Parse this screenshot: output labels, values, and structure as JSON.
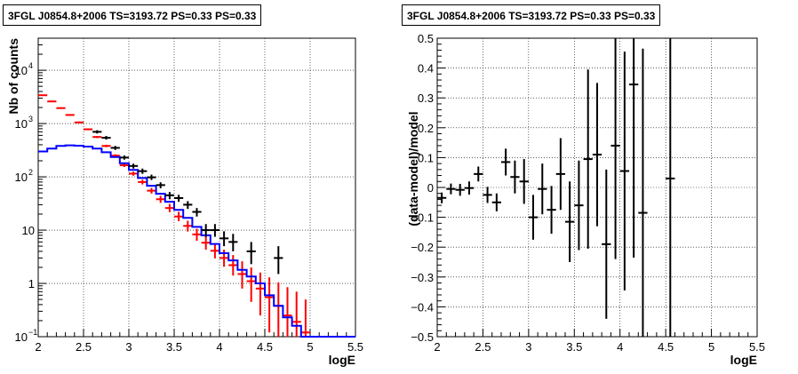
{
  "chart_data": [
    {
      "type": "histogram",
      "title": "3FGL J0854.8+2006 TS=3193.72 PS=0.33 PS=0.33",
      "xlabel": "logE",
      "ylabel": "Nb of counts",
      "xlim": [
        2,
        5.5
      ],
      "ylim": [
        0.1,
        40000
      ],
      "yscale": "log",
      "grid": true,
      "x_ticks": [
        "2",
        "2.5",
        "3",
        "3.5",
        "4",
        "4.5",
        "5",
        "5.5"
      ],
      "y_ticks": [
        "10^-1",
        "1",
        "10",
        "10^2",
        "10^3",
        "10^4"
      ],
      "bin_edges": [
        2.0,
        2.1,
        2.2,
        2.3,
        2.4,
        2.5,
        2.6,
        2.7,
        2.8,
        2.9,
        3.0,
        3.1,
        3.2,
        3.3,
        3.4,
        3.5,
        3.6,
        3.7,
        3.8,
        3.9,
        4.0,
        4.1,
        4.2,
        4.3,
        4.4,
        4.5,
        4.6,
        4.7,
        4.8,
        4.9,
        5.0,
        5.1,
        5.2,
        5.3,
        5.4,
        5.5
      ],
      "series": [
        {
          "color": "#ff0000",
          "style": "model-with-errors",
          "values": [
            3400,
            2600,
            1950,
            1450,
            1050,
            780,
            560,
            380,
            250,
            165,
            115,
            80,
            55,
            38,
            26,
            18,
            12,
            8.3,
            5.8,
            4.1,
            3.0,
            2.2,
            1.5,
            1.1,
            0.8,
            0.55,
            0.38,
            0.25,
            0.19,
            0.12
          ],
          "err_low": [
            3300,
            2520,
            1890,
            1400,
            1010,
            750,
            535,
            360,
            235,
            153,
            105,
            72,
            48.5,
            32.5,
            21.8,
            14.7,
            9.4,
            6.3,
            4.3,
            2.95,
            2.05,
            1.4,
            0.8,
            0.45,
            0.25,
            0.12,
            0.1,
            0.1,
            0.1,
            0.1
          ],
          "err_high": [
            3500,
            2680,
            2010,
            1500,
            1090,
            810,
            585,
            400,
            265,
            177,
            125,
            88,
            62,
            44,
            31,
            22,
            15,
            10.6,
            7.7,
            5.6,
            4.3,
            3.4,
            2.6,
            2.0,
            1.6,
            1.3,
            1.05,
            0.85,
            0.7,
            0.5
          ]
        },
        {
          "color": "#0000ff",
          "style": "step",
          "values": [
            300,
            340,
            380,
            390,
            385,
            370,
            340,
            290,
            235,
            180,
            135,
            95,
            68,
            48,
            34,
            24,
            17,
            11.5,
            8,
            5.5,
            3.7,
            2.7,
            1.8,
            1.35,
            1.0,
            0.6,
            0.38,
            0.23,
            0.16,
            0.1,
            0.1,
            0.1,
            0.1,
            0.1,
            0.1
          ]
        },
        {
          "color": "#000000",
          "style": "points-with-errors",
          "points": [
            {
              "x": 2.65,
              "y": 700,
              "low": 650,
              "high": 750
            },
            {
              "x": 2.75,
              "y": 540,
              "low": 500,
              "high": 585
            },
            {
              "x": 2.85,
              "y": 350,
              "low": 320,
              "high": 380
            },
            {
              "x": 2.95,
              "y": 230,
              "low": 210,
              "high": 252
            },
            {
              "x": 3.05,
              "y": 160,
              "low": 143,
              "high": 177
            },
            {
              "x": 3.15,
              "y": 128,
              "low": 114,
              "high": 143
            },
            {
              "x": 3.25,
              "y": 98,
              "low": 87,
              "high": 110
            },
            {
              "x": 3.35,
              "y": 70,
              "low": 61,
              "high": 79
            },
            {
              "x": 3.45,
              "y": 45,
              "low": 38,
              "high": 52
            },
            {
              "x": 3.55,
              "y": 40,
              "low": 34,
              "high": 46
            },
            {
              "x": 3.65,
              "y": 30,
              "low": 25,
              "high": 35
            },
            {
              "x": 3.75,
              "y": 22,
              "low": 18,
              "high": 26
            },
            {
              "x": 3.85,
              "y": 10,
              "low": 7.5,
              "high": 13
            },
            {
              "x": 3.95,
              "y": 10,
              "low": 7.5,
              "high": 13
            },
            {
              "x": 4.05,
              "y": 7,
              "low": 5,
              "high": 9.5
            },
            {
              "x": 4.15,
              "y": 6,
              "low": 4,
              "high": 8.5
            },
            {
              "x": 4.35,
              "y": 4,
              "low": 2.3,
              "high": 6
            },
            {
              "x": 4.65,
              "y": 3,
              "low": 1.5,
              "high": 5
            }
          ]
        }
      ]
    },
    {
      "type": "scatter",
      "title": "3FGL J0854.8+2006 TS=3193.72 PS=0.33 PS=0.33",
      "xlabel": "logE",
      "ylabel": "(data-model)/model",
      "xlim": [
        2,
        5.5
      ],
      "ylim": [
        -0.5,
        0.5
      ],
      "grid": true,
      "x_ticks": [
        "2",
        "2.5",
        "3",
        "3.5",
        "4",
        "4.5",
        "5",
        "5.5"
      ],
      "y_ticks": [
        "−0.5",
        "−0.4",
        "−0.3",
        "−0.2",
        "−0.1",
        "0",
        "0.1",
        "0.2",
        "0.3",
        "0.4",
        "0.5"
      ],
      "series": [
        {
          "color": "#000000",
          "points": [
            {
              "x": 2.05,
              "y": -0.035,
              "err": 0.018
            },
            {
              "x": 2.15,
              "y": -0.005,
              "err": 0.018
            },
            {
              "x": 2.25,
              "y": -0.008,
              "err": 0.02
            },
            {
              "x": 2.35,
              "y": -0.002,
              "err": 0.022
            },
            {
              "x": 2.45,
              "y": 0.045,
              "err": 0.025
            },
            {
              "x": 2.55,
              "y": -0.025,
              "err": 0.027
            },
            {
              "x": 2.65,
              "y": -0.05,
              "err": 0.03
            },
            {
              "x": 2.75,
              "y": 0.085,
              "err": 0.045
            },
            {
              "x": 2.85,
              "y": 0.035,
              "err": 0.055
            },
            {
              "x": 2.95,
              "y": 0.02,
              "err": 0.075
            },
            {
              "x": 3.05,
              "y": -0.1,
              "err": 0.075
            },
            {
              "x": 3.15,
              "y": -0.005,
              "err": 0.085
            },
            {
              "x": 3.25,
              "y": -0.075,
              "err": 0.08
            },
            {
              "x": 3.35,
              "y": 0.045,
              "err": 0.12
            },
            {
              "x": 3.45,
              "y": -0.115,
              "err": 0.135
            },
            {
              "x": 3.55,
              "y": -0.06,
              "err": 0.15
            },
            {
              "x": 3.65,
              "y": 0.095,
              "err": 0.3
            },
            {
              "x": 3.75,
              "y": 0.11,
              "err": 0.24
            },
            {
              "x": 3.85,
              "y": -0.19,
              "err": 0.25
            },
            {
              "x": 3.95,
              "y": 0.14,
              "err": 0.38
            },
            {
              "x": 4.05,
              "y": 0.055,
              "err": 0.4
            },
            {
              "x": 4.15,
              "y": 0.345,
              "err": 0.58
            },
            {
              "x": 4.25,
              "y": -0.085,
              "err": 0.55
            },
            {
              "x": 4.55,
              "y": 0.03,
              "err": 0.6
            }
          ]
        }
      ]
    }
  ]
}
